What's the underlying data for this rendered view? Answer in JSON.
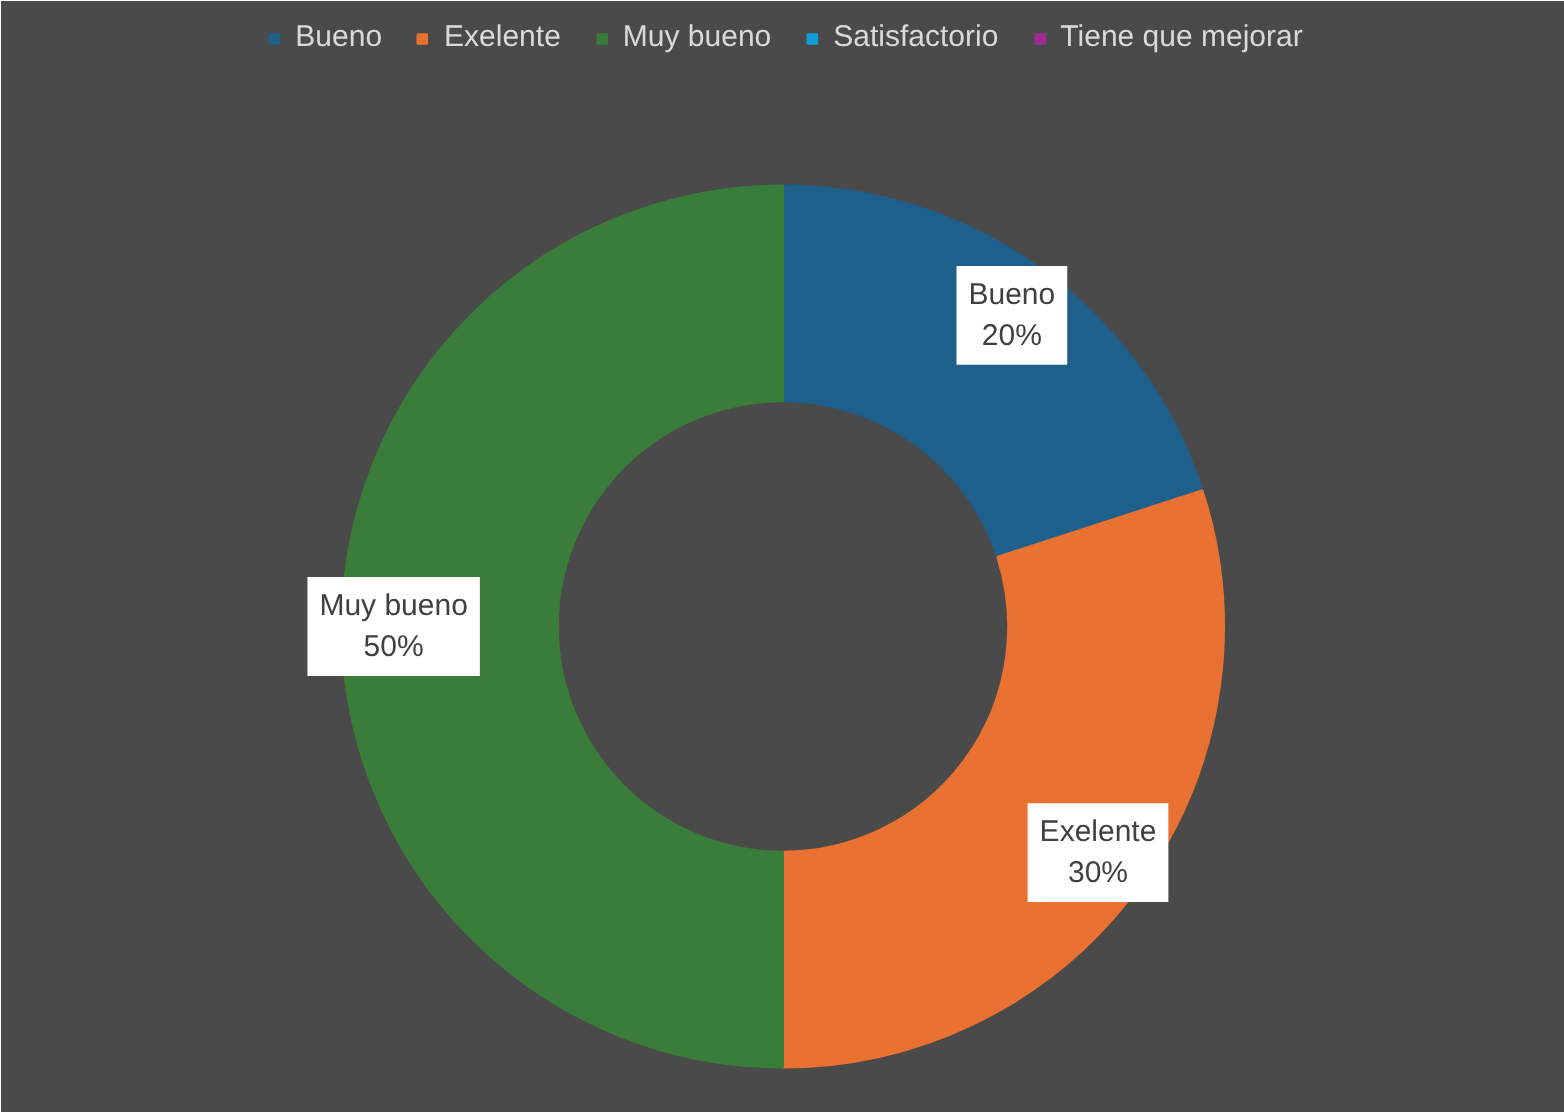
{
  "chart_data": {
    "type": "donut",
    "categories": [
      "Bueno",
      "Exelente",
      "Muy bueno",
      "Satisfactorio",
      "Tiene que mejorar"
    ],
    "values": [
      20,
      30,
      50,
      0,
      0
    ],
    "colors": [
      "#1f5f8b",
      "#e97132",
      "#3a7d3a",
      "#0f9ed5",
      "#a02b93"
    ],
    "value_labels": [
      "Bueno\n20%",
      "Exelente\n30%",
      "Muy bueno\n50%",
      null,
      null
    ],
    "legend": "top"
  }
}
